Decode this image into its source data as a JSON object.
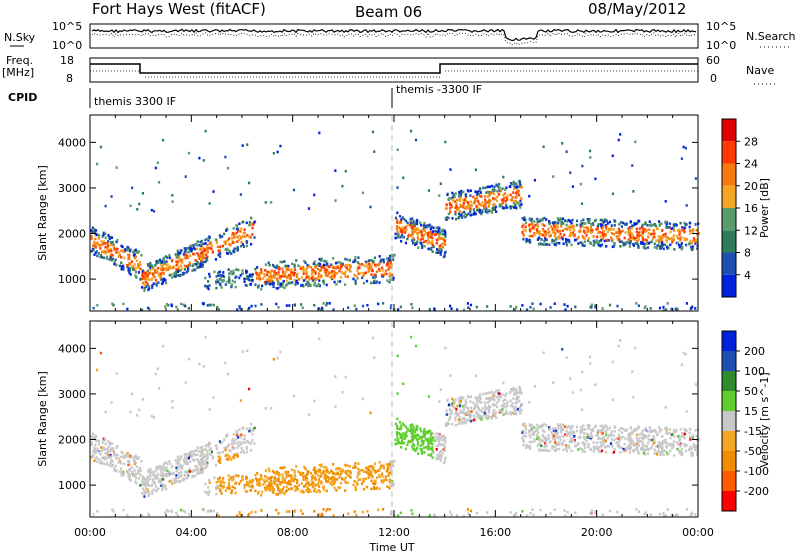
{
  "header": {
    "title": "Fort Hays West (fitACF)",
    "beam": "Beam 06",
    "date": "08/May/2012"
  },
  "strip": {
    "nsky_label": "N.Sky",
    "nsearch_label": "N.Search",
    "noise_ticks": [
      "10^5",
      "10^0"
    ],
    "freq_label": "Freq.",
    "freq_unit": "[MHz]",
    "freq_ticks": [
      "18",
      "8"
    ],
    "nave_label": "Nave",
    "nave_ticks": [
      "60",
      "0"
    ],
    "cpid_label": "CPID",
    "cpid_segments": [
      "themis 3300 IF",
      "themis -3300 IF"
    ]
  },
  "colors": {
    "power": [
      "#0022dd",
      "#1f4fb4",
      "#2e7d5a",
      "#5b9a6a",
      "#f5a623",
      "#f47a0e",
      "#ff3a00",
      "#e00000"
    ],
    "velocity": [
      "#ff0000",
      "#ff5a00",
      "#f08c00",
      "#f5a623",
      "#c8c8c8",
      "#5fcf2f",
      "#2e8b2e",
      "#1f4fb4",
      "#0022dd"
    ]
  },
  "chart_data": [
    {
      "type": "heatmap",
      "title": "",
      "ylabel": "Slant Range [km]",
      "xlabel": "",
      "x_ticks": [
        "00:00",
        "04:00",
        "08:00",
        "12:00",
        "16:00",
        "20:00",
        "00:00"
      ],
      "y_ticks": [
        "1000",
        "2000",
        "3000",
        "4000"
      ],
      "ylim": [
        300,
        4600
      ],
      "colorbar_label": "Power [dB]",
      "colorbar_ticks": [
        "4",
        "8",
        "12",
        "16",
        "20",
        "24",
        "28"
      ],
      "colorbar_range": [
        0,
        32
      ]
    },
    {
      "type": "heatmap",
      "title": "",
      "ylabel": "Slant Range [km]",
      "xlabel": "Time UT",
      "x_ticks": [
        "00:00",
        "04:00",
        "08:00",
        "12:00",
        "16:00",
        "20:00",
        "00:00"
      ],
      "y_ticks": [
        "1000",
        "2000",
        "3000",
        "4000"
      ],
      "ylim": [
        300,
        4600
      ],
      "colorbar_label": "Velocity [m s^-1]",
      "colorbar_ticks": [
        "200",
        "100",
        "50",
        "15",
        "-15",
        "-50",
        "-100",
        "-200"
      ],
      "colorbar_range": [
        -250,
        250
      ]
    }
  ]
}
